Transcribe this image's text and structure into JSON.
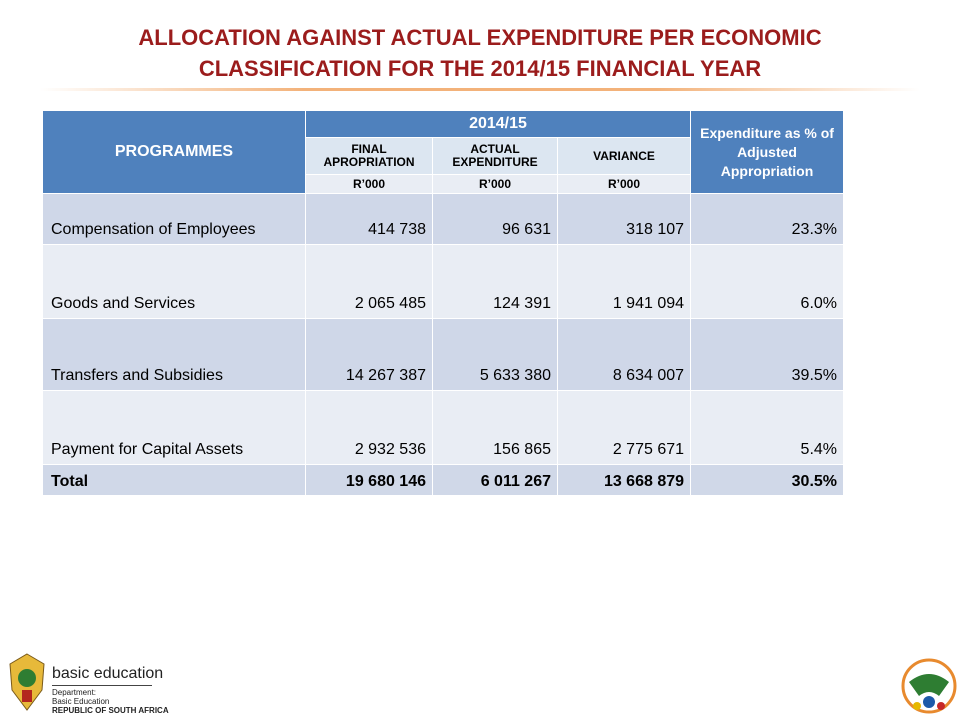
{
  "header": {
    "title_lines": [
      "ALLOCATION AGAINST ACTUAL EXPENDITURE PER ECONOMIC",
      "CLASSIFICATION FOR THE 2014/15 FINANCIAL YEAR"
    ]
  },
  "table": {
    "programmes": "PROGRAMMES",
    "year": "2014/15",
    "percent_header": "Expenditure as % of Adjusted Appropriation",
    "columns": [
      "FINAL APROPRIATION",
      "ACTUAL EXPENDITURE",
      "VARIANCE"
    ],
    "units": [
      "R’000",
      "R’000",
      "R’000"
    ],
    "rows": [
      [
        "Compensation of Employees",
        "414 738",
        "96 631",
        "318 107",
        "23.3%"
      ],
      [
        "Goods and Services",
        "2 065 485",
        "124 391",
        "1 941 094",
        "6.0%"
      ],
      [
        "Transfers and Subsidies",
        "14 267 387",
        "5 633 380",
        "8 634 007",
        "39.5%"
      ],
      [
        "Payment for Capital Assets",
        "2 932 536",
        "156 865",
        "2 775 671",
        "5.4%"
      ]
    ],
    "total": [
      "Total",
      "19 680 146",
      "6 011 267",
      "13 668 879",
      "30.5%"
    ]
  },
  "footer": {
    "logo_title": "basic education",
    "logo_lines": [
      "Department:",
      "Basic Education",
      "REPUBLIC OF SOUTH AFRICA"
    ]
  }
}
